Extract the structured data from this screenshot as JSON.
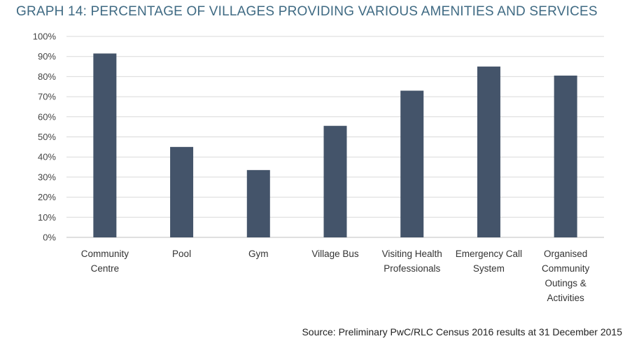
{
  "title": "GRAPH 14: PERCENTAGE OF VILLAGES PROVIDING VARIOUS AMENITIES AND SERVICES",
  "source": "Source: Preliminary PwC/RLC Census 2016 results at 31 December 2015",
  "colors": {
    "bar": "#44546a",
    "grid": "#d9d9d9",
    "title": "#3f6a83"
  },
  "chart_data": {
    "type": "bar",
    "categories": [
      [
        "Community",
        "Centre"
      ],
      [
        "Pool"
      ],
      [
        "Gym"
      ],
      [
        "Village Bus"
      ],
      [
        "Visiting Health",
        "Professionals"
      ],
      [
        "Emergency Call",
        "System"
      ],
      [
        "Organised",
        "Community",
        "Outings &",
        "Activities"
      ]
    ],
    "values": [
      91.5,
      45,
      33.5,
      55.5,
      73,
      85,
      80.5
    ],
    "ylim": [
      0,
      100
    ],
    "yticks": [
      0,
      10,
      20,
      30,
      40,
      50,
      60,
      70,
      80,
      90,
      100
    ],
    "ytick_labels": [
      "0%",
      "10%",
      "20%",
      "30%",
      "40%",
      "50%",
      "60%",
      "70%",
      "80%",
      "90%",
      "100%"
    ],
    "grid": true,
    "legend": "none"
  }
}
